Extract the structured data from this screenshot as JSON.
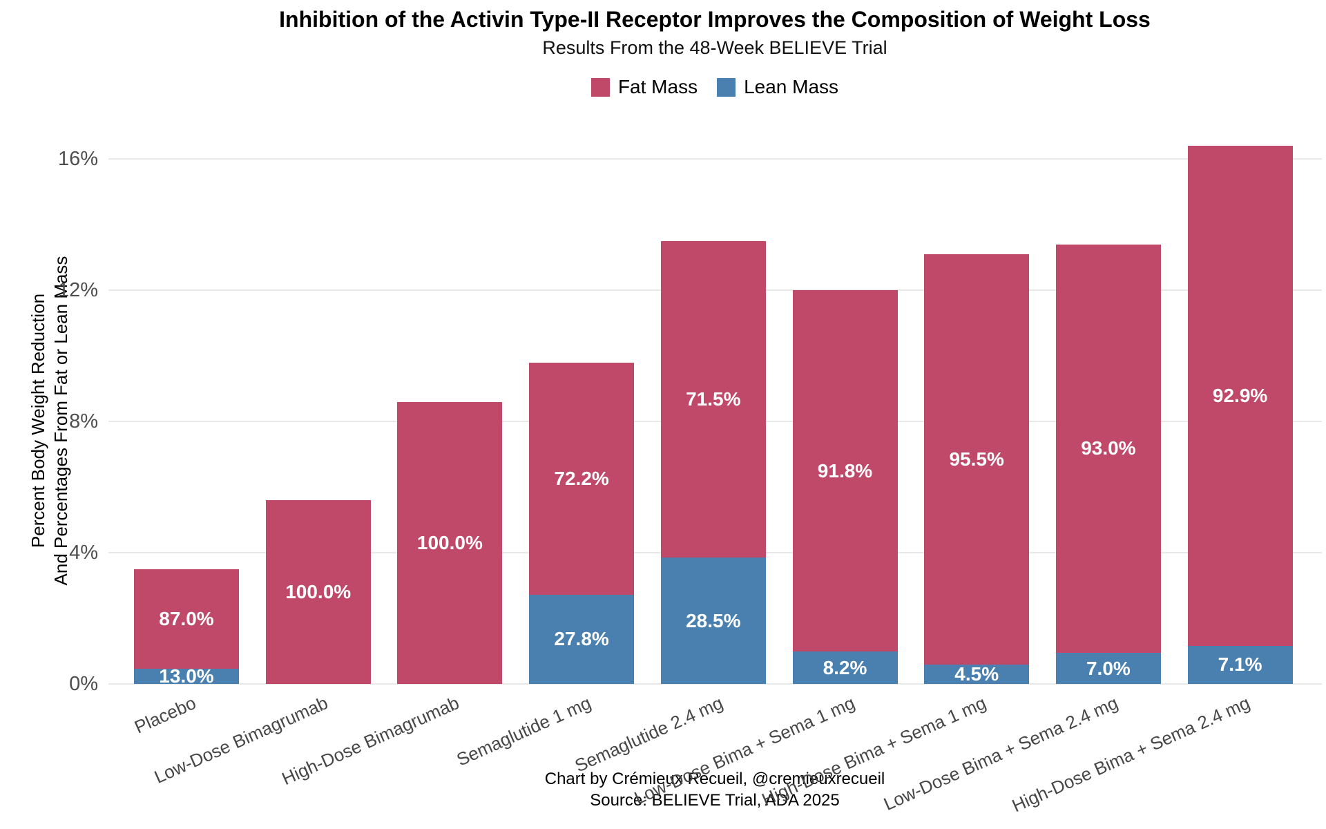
{
  "chart_data": {
    "type": "bar",
    "stacked": true,
    "title": "Inhibition of the Activin Type-II Receptor Improves the Composition of Weight Loss",
    "subtitle": "Results From the 48-Week BELIEVE Trial",
    "ylabel_line1": "Percent Body Weight Reduction",
    "ylabel_line2": "And Percentages From Fat or Lean Mass",
    "legend_position": "top",
    "grid": true,
    "background_color": "#FFFFFF",
    "grid_color": "#E8E8E8",
    "ytick_text_color": "#4D4D4D",
    "xtick_text_color": "#474747",
    "bar_label_color": "#FFFFFF",
    "ylim": [
      0,
      16.8
    ],
    "yticks": [
      {
        "value": 0,
        "label": "0%"
      },
      {
        "value": 4,
        "label": "4%"
      },
      {
        "value": 8,
        "label": "8%"
      },
      {
        "value": 12,
        "label": "12%"
      },
      {
        "value": 16,
        "label": "16%"
      }
    ],
    "legend": [
      {
        "name": "Fat Mass",
        "color": "#C0496A"
      },
      {
        "name": "Lean Mass",
        "color": "#4A80B0"
      }
    ],
    "categories": [
      "Placebo",
      "Low-Dose Bimagrumab",
      "High-Dose Bimagrumab",
      "Semaglutide 1 mg",
      "Semaglutide 2.4 mg",
      "Low-Dose Bima + Sema 1 mg",
      "High-Dose Bima + Sema 1 mg",
      "Low-Dose Bima + Sema 2.4 mg",
      "High-Dose Bima + Sema 2.4 mg"
    ],
    "groups": [
      {
        "category": "Placebo",
        "total_weight_loss_pct": 3.5,
        "fat_share_pct": 87.0,
        "lean_share_pct": 13.0,
        "fat_label": "87.0%",
        "lean_label": "13.0%"
      },
      {
        "category": "Low-Dose Bimagrumab",
        "total_weight_loss_pct": 5.6,
        "fat_share_pct": 100.0,
        "lean_share_pct": 0.0,
        "fat_label": "100.0%",
        "lean_label": null
      },
      {
        "category": "High-Dose Bimagrumab",
        "total_weight_loss_pct": 8.6,
        "fat_share_pct": 100.0,
        "lean_share_pct": 0.0,
        "fat_label": "100.0%",
        "lean_label": null
      },
      {
        "category": "Semaglutide 1 mg",
        "total_weight_loss_pct": 9.8,
        "fat_share_pct": 72.2,
        "lean_share_pct": 27.8,
        "fat_label": "72.2%",
        "lean_label": "27.8%"
      },
      {
        "category": "Semaglutide 2.4 mg",
        "total_weight_loss_pct": 13.5,
        "fat_share_pct": 71.5,
        "lean_share_pct": 28.5,
        "fat_label": "71.5%",
        "lean_label": "28.5%"
      },
      {
        "category": "Low-Dose Bima + Sema 1 mg",
        "total_weight_loss_pct": 12.0,
        "fat_share_pct": 91.8,
        "lean_share_pct": 8.2,
        "fat_label": "91.8%",
        "lean_label": "8.2%"
      },
      {
        "category": "High-Dose Bima + Sema 1 mg",
        "total_weight_loss_pct": 13.1,
        "fat_share_pct": 95.5,
        "lean_share_pct": 4.5,
        "fat_label": "95.5%",
        "lean_label": "4.5%"
      },
      {
        "category": "Low-Dose Bima + Sema 2.4 mg",
        "total_weight_loss_pct": 13.4,
        "fat_share_pct": 93.0,
        "lean_share_pct": 7.0,
        "fat_label": "93.0%",
        "lean_label": "7.0%"
      },
      {
        "category": "High-Dose Bima + Sema 2.4 mg",
        "total_weight_loss_pct": 16.4,
        "fat_share_pct": 92.9,
        "lean_share_pct": 7.1,
        "fat_label": "92.9%",
        "lean_label": "7.1%"
      }
    ],
    "caption_line1": "Chart by Crémieux Recueil, @cremieuxrecueil",
    "caption_line2": "Source: BELIEVE Trial, ADA 2025"
  }
}
